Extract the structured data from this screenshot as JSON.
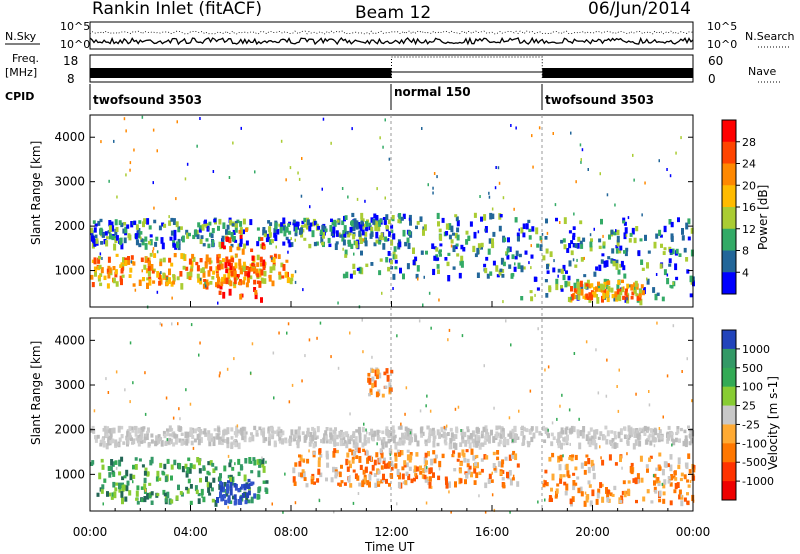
{
  "header": {
    "station": "Rankin Inlet (fitACF)",
    "beam": "Beam 12",
    "date": "06/Jun/2014"
  },
  "strip": {
    "nsky_label": "N.Sky",
    "nsky_ticks": [
      "10^5",
      "10^0"
    ],
    "nsky_right_ticks": [
      "10^5",
      "10^0"
    ],
    "nsearch_label": "N.Search",
    "freq_label": "Freq.",
    "freq_unit": "[MHz]",
    "freq_ticks": [
      "18",
      "8"
    ],
    "nave_ticks": [
      "60",
      "0"
    ],
    "nave_label": "Nave",
    "cpid_label": "CPID",
    "cpid_segments": [
      {
        "label": "twofsound 3503",
        "start_hr": 0,
        "end_hr": 12
      },
      {
        "label": "normal 150",
        "start_hr": 12,
        "end_hr": 18
      },
      {
        "label": "twofsound 3503",
        "start_hr": 18,
        "end_hr": 24
      }
    ]
  },
  "chart_data": [
    {
      "type": "heatmap",
      "quantity": "power",
      "ylabel": "Slant Range [km]",
      "ylim": [
        180,
        4500
      ],
      "yticks": [
        1000,
        2000,
        3000,
        4000
      ],
      "xlim": [
        0,
        24
      ],
      "colorbar_label": "Power [dB]",
      "colorbar_ticks": [
        "28",
        "24",
        "20",
        "16",
        "12",
        "8",
        "4"
      ],
      "colorbar_colors": [
        "#ff0000",
        "#ff4400",
        "#ff8800",
        "#ffbb00",
        "#aacc33",
        "#33aa66",
        "#226699",
        "#0000ff"
      ],
      "bands": [
        {
          "t0": 0,
          "t1": 12,
          "r0": 1600,
          "r1": 2200,
          "level": "mid"
        },
        {
          "t0": 0,
          "t1": 8,
          "r0": 700,
          "r1": 1400,
          "level": "high"
        },
        {
          "t0": 5,
          "t1": 7,
          "r0": 400,
          "r1": 2000,
          "level": "peak"
        },
        {
          "t0": 10,
          "t1": 17,
          "r0": 900,
          "r1": 2300,
          "level": "mid"
        },
        {
          "t0": 17,
          "t1": 24,
          "r0": 400,
          "r1": 2200,
          "level": "mid"
        },
        {
          "t0": 19,
          "t1": 22,
          "r0": 350,
          "r1": 800,
          "level": "high"
        }
      ]
    },
    {
      "type": "heatmap",
      "quantity": "velocity",
      "ylabel": "Slant Range [km]",
      "xlabel": "Time UT",
      "ylim": [
        180,
        4500
      ],
      "yticks": [
        1000,
        2000,
        3000,
        4000
      ],
      "xlim": [
        0,
        24
      ],
      "xticks": [
        "00:00",
        "04:00",
        "08:00",
        "12:00",
        "16:00",
        "20:00",
        "00:00"
      ],
      "colorbar_label": "Velocity [m s-1]",
      "colorbar_ticks": [
        "1000",
        "500",
        "100",
        "25",
        "-25",
        "-100",
        "-500",
        "-1000"
      ],
      "colorbar_colors": [
        "#2244bb",
        "#339966",
        "#33aa55",
        "#88cc33",
        "#c8c8c8",
        "#ffaa33",
        "#ff7700",
        "#ff3300",
        "#ee0000"
      ],
      "bands": [
        {
          "t0": 0,
          "t1": 24,
          "r0": 1700,
          "r1": 2100,
          "level": "ground"
        },
        {
          "t0": 0,
          "t1": 7,
          "r0": 400,
          "r1": 1400,
          "level": "pos"
        },
        {
          "t0": 5,
          "t1": 6.5,
          "r0": 400,
          "r1": 900,
          "level": "strongpos"
        },
        {
          "t0": 11,
          "t1": 12,
          "r0": 2800,
          "r1": 3400,
          "level": "neg"
        },
        {
          "t0": 8,
          "t1": 17,
          "r0": 800,
          "r1": 1600,
          "level": "neg"
        },
        {
          "t0": 18,
          "t1": 24,
          "r0": 400,
          "r1": 1500,
          "level": "neg"
        }
      ]
    }
  ]
}
